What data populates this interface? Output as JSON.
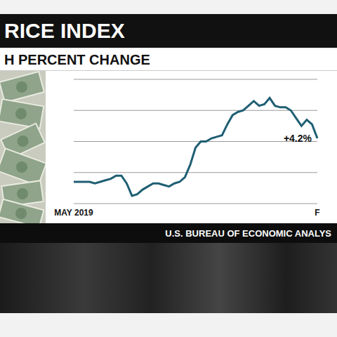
{
  "title": "RICE INDEX",
  "subtitle": "H PERCENT CHANGE",
  "source": "U.S. BUREAU OF ECONOMIC ANALYS",
  "chart_data": {
    "type": "line",
    "categories": [
      "MAY 2019",
      null,
      null,
      null,
      null,
      null,
      null,
      null,
      null,
      null,
      null,
      null,
      null,
      null,
      null,
      null,
      null,
      null,
      null,
      null,
      null,
      null,
      null,
      null,
      null,
      null,
      null,
      null,
      null,
      null,
      null,
      null,
      null,
      null,
      null,
      null,
      null,
      null,
      null,
      null,
      null,
      null,
      null,
      null,
      null,
      null,
      "F"
    ],
    "values": [
      1.4,
      1.4,
      1.4,
      1.4,
      1.3,
      1.4,
      1.5,
      1.6,
      1.8,
      1.8,
      1.3,
      0.5,
      0.6,
      0.9,
      1.1,
      1.3,
      1.3,
      1.2,
      1.1,
      1.3,
      1.4,
      1.7,
      2.5,
      3.6,
      4.0,
      4.0,
      4.2,
      4.3,
      4.4,
      5.1,
      5.7,
      5.9,
      6.0,
      6.3,
      6.6,
      6.3,
      6.4,
      6.8,
      6.3,
      6.2,
      6.2,
      6.0,
      5.5,
      5.0,
      5.4,
      5.1,
      4.2
    ],
    "annotation": "+4.2%",
    "color": "#1f5f73",
    "ylim": [
      0,
      8
    ],
    "yticks": [
      0,
      2,
      4,
      6,
      8
    ],
    "grid": true,
    "tick_labels": "x"
  }
}
